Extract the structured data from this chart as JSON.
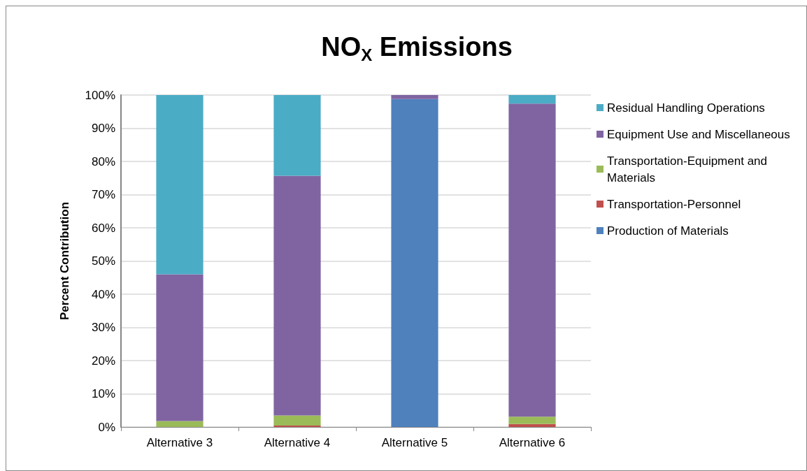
{
  "chart_data": {
    "type": "bar",
    "title": "NO$_{X}$ Emissions",
    "ylabel": "Percent Contribution",
    "categories": [
      "Alternative 3",
      "Alternative 4",
      "Alternative 5",
      "Alternative 6"
    ],
    "stacked": true,
    "series": [
      {
        "name": "Production of Materials",
        "color": "#4f81bd",
        "values": [
          0,
          0,
          98.8,
          0
        ]
      },
      {
        "name": "Transportation-Personnel",
        "color": "#c0504d",
        "values": [
          0,
          0.4,
          0,
          0.9
        ]
      },
      {
        "name": "Transportation-Equipment and Materials",
        "color": "#9bbb59",
        "values": [
          1.8,
          3.1,
          0,
          2.2
        ]
      },
      {
        "name": "Equipment Use and Miscellaneous",
        "color": "#8064a2",
        "values": [
          44.2,
          72.2,
          1.2,
          94.3
        ]
      },
      {
        "name": "Residual Handling Operations",
        "color": "#4bacc6",
        "values": [
          54,
          24.3,
          0,
          2.6
        ]
      }
    ],
    "ylim": [
      0,
      100
    ],
    "yticks": [
      {
        "value": 0,
        "label": "0%"
      },
      {
        "value": 10,
        "label": "10%"
      },
      {
        "value": 20,
        "label": "20%"
      },
      {
        "value": 30,
        "label": "30%"
      },
      {
        "value": 40,
        "label": "40%"
      },
      {
        "value": 50,
        "label": "50%"
      },
      {
        "value": 60,
        "label": "60%"
      },
      {
        "value": 70,
        "label": "70%"
      },
      {
        "value": 80,
        "label": "80%"
      },
      {
        "value": 90,
        "label": "90%"
      },
      {
        "value": 100,
        "label": "100%"
      }
    ],
    "grid": "y",
    "legend": "right"
  }
}
